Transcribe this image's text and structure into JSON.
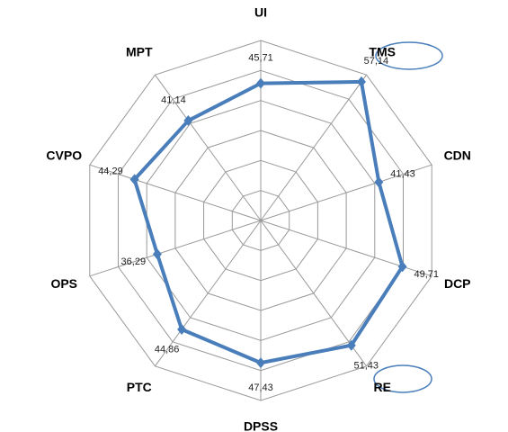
{
  "chart_data": {
    "type": "radar",
    "categories": [
      "UI",
      "TMS",
      "CDN",
      "DCP",
      "RE",
      "DPSS",
      "PTC",
      "OPS",
      "CVPO",
      "MPT"
    ],
    "values": [
      45.71,
      57.14,
      41.43,
      49.71,
      51.43,
      47.43,
      44.86,
      36.29,
      44.29,
      41.14
    ],
    "value_labels": [
      "45,71",
      "57,14",
      "41,43",
      "49,71",
      "51,43",
      "47,43",
      "44,86",
      "36,29",
      "44,29",
      "41,14"
    ],
    "color": "#4a7ebb",
    "ylim": [
      0,
      60
    ],
    "yticks": [
      10,
      20,
      30,
      40,
      50,
      60
    ],
    "grid": true
  }
}
